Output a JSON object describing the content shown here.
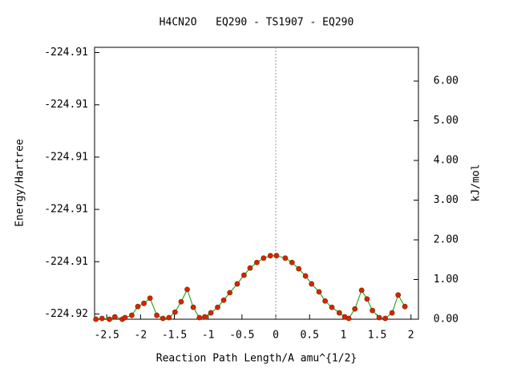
{
  "chart_data": {
    "type": "line",
    "title": "H4CN2O   EQ290 - TS1907 - EQ290",
    "xlabel": "Reaction Path Length/A amu^{1/2}",
    "ylabel": "Energy/Hartree",
    "y2label": "kJ/mol",
    "xlim": [
      -2.68,
      2.11
    ],
    "xticks": [
      -2.5,
      -2,
      -1.5,
      -1,
      -0.5,
      0,
      0.5,
      1,
      1.5,
      2
    ],
    "ylim": [
      -224.92005,
      -224.91745
    ],
    "yticks": [
      {
        "value": -224.92,
        "label": "-224.92"
      },
      {
        "value": -224.9195,
        "label": "-224.91"
      },
      {
        "value": -224.919,
        "label": "-224.91"
      },
      {
        "value": -224.9185,
        "label": "-224.91"
      },
      {
        "value": -224.918,
        "label": "-224.91"
      },
      {
        "value": -224.9175,
        "label": "-224.91"
      }
    ],
    "y2lim": [
      0,
      6.85
    ],
    "y2ticks": [
      {
        "value": 0,
        "label": "0.00"
      },
      {
        "value": 1,
        "label": "1.00"
      },
      {
        "value": 2,
        "label": "2.00"
      },
      {
        "value": 3,
        "label": "3.00"
      },
      {
        "value": 4,
        "label": "4.00"
      },
      {
        "value": 5,
        "label": "5.00"
      },
      {
        "value": 6,
        "label": "6.00"
      }
    ],
    "reference_line": {
      "x": 0,
      "color": "#999999"
    },
    "x": [
      -2.66,
      -2.57,
      -2.46,
      -2.38,
      -2.27,
      -2.23,
      -2.13,
      -2.04,
      -1.95,
      -1.86,
      -1.76,
      -1.67,
      -1.58,
      -1.49,
      -1.4,
      -1.31,
      -1.22,
      -1.13,
      -1.05,
      -0.96,
      -0.86,
      -0.77,
      -0.68,
      -0.57,
      -0.47,
      -0.38,
      -0.28,
      -0.18,
      -0.08,
      0.01,
      0.14,
      0.24,
      0.34,
      0.44,
      0.53,
      0.64,
      0.73,
      0.83,
      0.94,
      1.02,
      1.08,
      1.17,
      1.27,
      1.35,
      1.43,
      1.53,
      1.62,
      1.72,
      1.81,
      1.91
    ],
    "series": [
      {
        "color": "#00a000",
        "marker_color": "#e02000",
        "axis": "y2",
        "values": [
          0,
          0.02,
          0,
          0.06,
          0,
          0.04,
          0.1,
          0.32,
          0.4,
          0.53,
          0.1,
          0.02,
          0.04,
          0.18,
          0.44,
          0.75,
          0.3,
          0.04,
          0.06,
          0.16,
          0.3,
          0.48,
          0.67,
          0.89,
          1.11,
          1.29,
          1.43,
          1.54,
          1.6,
          1.6,
          1.54,
          1.43,
          1.27,
          1.09,
          0.89,
          0.69,
          0.46,
          0.3,
          0.16,
          0.06,
          0.02,
          0.26,
          0.73,
          0.51,
          0.22,
          0.04,
          0.02,
          0.16,
          0.61,
          0.32
        ]
      }
    ]
  }
}
